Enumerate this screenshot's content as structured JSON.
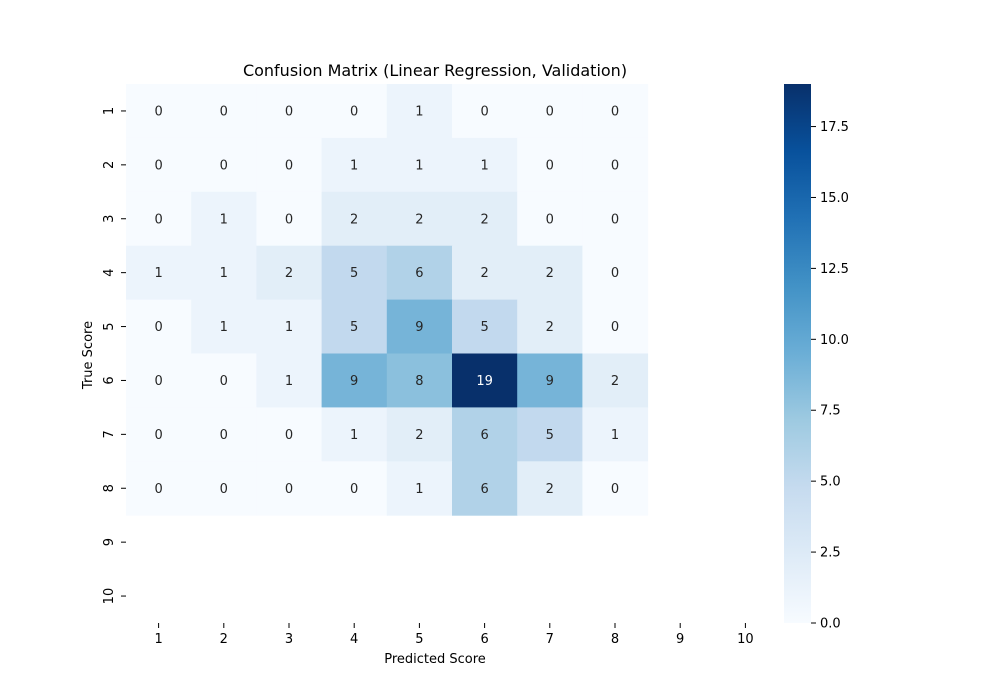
{
  "chart_data": {
    "type": "heatmap",
    "title": "Confusion Matrix (Linear Regression, Validation)",
    "xlabel": "Predicted Score",
    "ylabel": "True Score",
    "x_categories": [
      "1",
      "2",
      "3",
      "4",
      "5",
      "6",
      "7",
      "8",
      "9",
      "10"
    ],
    "y_categories": [
      "1",
      "2",
      "3",
      "4",
      "5",
      "6",
      "7",
      "8",
      "9",
      "10"
    ],
    "values": [
      [
        0,
        0,
        0,
        0,
        1,
        0,
        0,
        0,
        null,
        null
      ],
      [
        0,
        0,
        0,
        1,
        1,
        1,
        0,
        0,
        null,
        null
      ],
      [
        0,
        1,
        0,
        2,
        2,
        2,
        0,
        0,
        null,
        null
      ],
      [
        1,
        1,
        2,
        5,
        6,
        2,
        2,
        0,
        null,
        null
      ],
      [
        0,
        1,
        1,
        5,
        9,
        5,
        2,
        0,
        null,
        null
      ],
      [
        0,
        0,
        1,
        9,
        8,
        19,
        9,
        2,
        null,
        null
      ],
      [
        0,
        0,
        0,
        1,
        2,
        6,
        5,
        1,
        null,
        null
      ],
      [
        0,
        0,
        0,
        0,
        1,
        6,
        2,
        0,
        null,
        null
      ],
      [
        null,
        null,
        null,
        null,
        null,
        null,
        null,
        null,
        null,
        null
      ],
      [
        null,
        null,
        null,
        null,
        null,
        null,
        null,
        null,
        null,
        null
      ]
    ],
    "colorbar": {
      "min": 0,
      "max": 19,
      "ticks": [
        0.0,
        2.5,
        5.0,
        7.5,
        10.0,
        12.5,
        15.0,
        17.5
      ],
      "tick_labels": [
        "0.0",
        "2.5",
        "5.0",
        "7.5",
        "10.0",
        "12.5",
        "15.0",
        "17.5"
      ],
      "colormap": "Blues"
    }
  }
}
